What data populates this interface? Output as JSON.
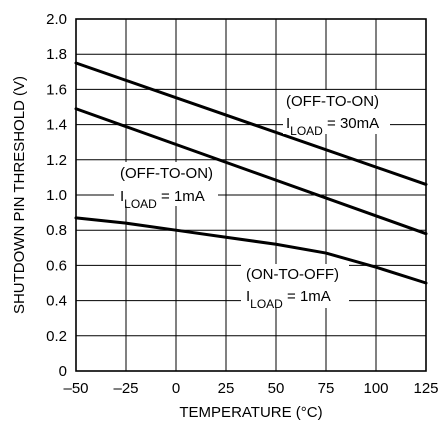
{
  "chart_data": {
    "type": "line",
    "title": "",
    "xlabel": "TEMPERATURE (°C)",
    "ylabel": "SHUTDOWN PIN THRESHOLD (V)",
    "xlim": [
      -50,
      125
    ],
    "ylim": [
      0,
      2.0
    ],
    "x_ticks": [
      -50,
      -25,
      0,
      25,
      50,
      75,
      100,
      125
    ],
    "x_tick_labels": [
      "–50",
      "–25",
      "0",
      "25",
      "50",
      "75",
      "100",
      "125"
    ],
    "y_ticks": [
      0,
      0.2,
      0.4,
      0.6,
      0.8,
      1.0,
      1.2,
      1.4,
      1.6,
      1.8,
      2.0
    ],
    "y_tick_labels": [
      "0",
      "0.2",
      "0.4",
      "0.6",
      "0.8",
      "1.0",
      "1.2",
      "1.4",
      "1.6",
      "1.8",
      "2.0"
    ],
    "grid": true,
    "legend": "none",
    "series": [
      {
        "x": [
          -50,
          125
        ],
        "values": [
          1.75,
          1.06
        ]
      },
      {
        "x": [
          -50,
          125
        ],
        "values": [
          1.49,
          0.78
        ]
      },
      {
        "x": [
          -50,
          -25,
          0,
          25,
          50,
          75,
          100,
          125
        ],
        "values": [
          0.87,
          0.84,
          0.8,
          0.76,
          0.72,
          0.67,
          0.59,
          0.5
        ]
      }
    ],
    "annotations": [
      {
        "line1": "(OFF-TO-ON)",
        "i_main": "I",
        "i_sub": "LOAD",
        "i_value": " = 30mA"
      },
      {
        "line1": "(OFF-TO-ON)",
        "i_main": "I",
        "i_sub": "LOAD",
        "i_value": " = 1mA"
      },
      {
        "line1": "(ON-TO-OFF)",
        "i_main": "I",
        "i_sub": "LOAD",
        "i_value": " = 1mA"
      }
    ]
  },
  "colors": {
    "line": "#000000",
    "grid": "#000000",
    "background": "#ffffff"
  }
}
